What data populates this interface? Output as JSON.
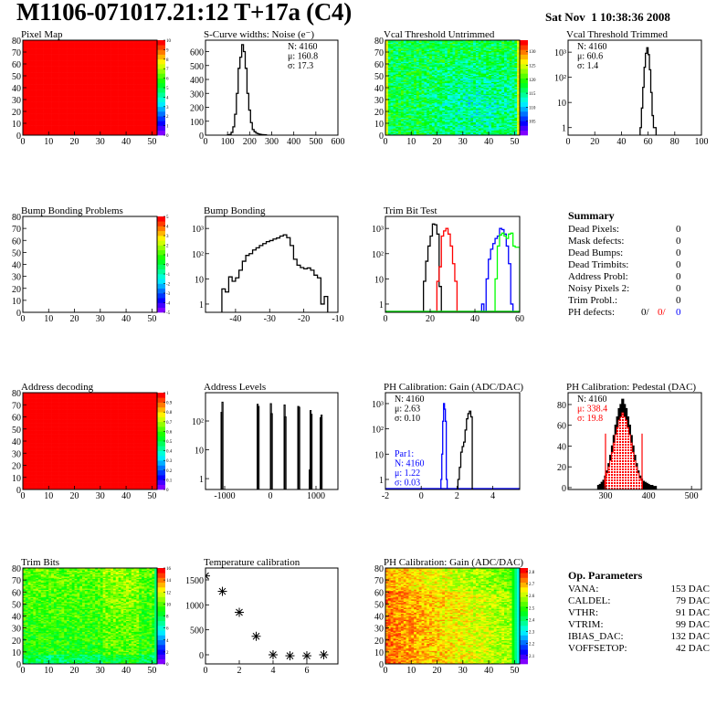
{
  "header": {
    "title": "M1106-071017.21:12 T+17a (C4)",
    "date": "Sat Nov  1 10:38:36 2008"
  },
  "colors": {
    "frame": "#000000",
    "black": "#000000",
    "red": "#ff0000",
    "blue": "#0000ff",
    "green": "#00ff00"
  },
  "pads": [
    {
      "id": "pixel-map",
      "title": "Pixel Map",
      "kind": "map",
      "xlim": [
        0,
        52
      ],
      "ylim": [
        0,
        80
      ],
      "xticks": [
        0,
        10,
        20,
        30,
        40,
        50
      ],
      "yticks": [
        0,
        10,
        20,
        30,
        40,
        50,
        60,
        70,
        80
      ],
      "zlim": [
        0,
        10
      ],
      "zticks": [
        0,
        1,
        2,
        3,
        4,
        5,
        6,
        7,
        8,
        9,
        10
      ],
      "fill": "uniform"
    },
    {
      "id": "s-curve-widths",
      "title": "S-Curve widths: Noise (e⁻)",
      "kind": "hist",
      "log": false,
      "xlim": [
        0,
        600
      ],
      "ylim": [
        0,
        682
      ],
      "xticks": [
        0,
        100,
        200,
        300,
        400,
        500,
        600
      ],
      "yticks": [
        0,
        100,
        200,
        300,
        400,
        500,
        600
      ],
      "stats_pos": "right",
      "stats": [
        {
          "text": "N: 4160",
          "color": "#000000"
        },
        {
          "text": "μ: 160.8",
          "color": "#000000"
        },
        {
          "text": "σ: 17.3",
          "color": "#000000"
        }
      ],
      "series": [
        {
          "color": "#000000",
          "start": 100,
          "width": 8,
          "values": [
            2,
            5,
            20,
            60,
            150,
            300,
            480,
            560,
            650,
            600,
            480,
            300,
            180,
            90,
            40,
            25,
            15,
            10,
            6,
            4,
            3,
            2
          ]
        }
      ]
    },
    {
      "id": "vcal-threshold-untrimmed",
      "title": "Vcal Threshold Untrimmed",
      "kind": "map",
      "xlim": [
        0,
        52
      ],
      "ylim": [
        0,
        80
      ],
      "xticks": [
        0,
        10,
        20,
        30,
        40,
        50
      ],
      "yticks": [
        0,
        10,
        20,
        30,
        40,
        50,
        60,
        70,
        80
      ],
      "zlim": [
        100,
        134
      ],
      "zticks": [
        105,
        110,
        115,
        120,
        125,
        130
      ],
      "fill": "vcal"
    },
    {
      "id": "vcal-threshold-trimmed",
      "title": "Vcal Threshold Trimmed",
      "kind": "hist",
      "log": true,
      "xlim": [
        0,
        100
      ],
      "ylim": [
        0.5,
        3000
      ],
      "xticks": [
        0,
        20,
        40,
        60,
        80,
        100
      ],
      "yticks": [
        {
          "v": 1,
          "label": "1"
        },
        {
          "v": 10,
          "label": "10"
        },
        {
          "v": 100,
          "label": "10²"
        },
        {
          "v": 1000,
          "label": "10³"
        }
      ],
      "stats_pos": "left",
      "stats": [
        {
          "text": "N: 4160",
          "color": "#000000"
        },
        {
          "text": "μ: 60.6",
          "color": "#000000"
        },
        {
          "text": "σ:  1.4",
          "color": "#000000"
        }
      ],
      "series": [
        {
          "color": "#000000",
          "start": 54,
          "width": 1,
          "values": [
            1,
            6,
            40,
            250,
            900,
            1500,
            800,
            200,
            25,
            3,
            1,
            1
          ]
        }
      ]
    },
    {
      "id": "bump-bonding-problems",
      "title": "Bump Bonding Problems",
      "kind": "map",
      "xlim": [
        0,
        52
      ],
      "ylim": [
        0,
        80
      ],
      "xticks": [
        0,
        10,
        20,
        30,
        40,
        50
      ],
      "yticks": [
        0,
        10,
        20,
        30,
        40,
        50,
        60,
        70,
        80
      ],
      "zlim": [
        -5,
        5
      ],
      "zticks": [
        -5,
        -4,
        -3,
        -2,
        -1,
        0,
        1,
        2,
        3,
        4,
        5
      ],
      "fill": "empty"
    },
    {
      "id": "bump-bonding",
      "title": "Bump Bonding",
      "kind": "hist",
      "log": true,
      "xlim": [
        -48.8,
        -10
      ],
      "ylim": [
        0.47,
        3000
      ],
      "xticks": [
        -40,
        -30,
        -20,
        -10
      ],
      "yticks": [
        {
          "v": 1,
          "label": "1"
        },
        {
          "v": 10,
          "label": "10"
        },
        {
          "v": 100,
          "label": "10²"
        },
        {
          "v": 1000,
          "label": "10³"
        }
      ],
      "series": [
        {
          "color": "#000000",
          "start": -44,
          "width": 1,
          "values": [
            4,
            3,
            12,
            8,
            11,
            22,
            50,
            85,
            100,
            140,
            170,
            210,
            250,
            300,
            330,
            380,
            420,
            500,
            560,
            430,
            210,
            60,
            35,
            28,
            25,
            27,
            22,
            14,
            11,
            1,
            2
          ]
        }
      ]
    },
    {
      "id": "trim-bit-test",
      "title": "Trim Bit Test",
      "kind": "hist",
      "log": true,
      "xlim": [
        0,
        60
      ],
      "ylim": [
        0.47,
        3000
      ],
      "xticks": [
        0,
        20,
        40,
        60
      ],
      "yticks": [
        {
          "v": 1,
          "label": "1"
        },
        {
          "v": 10,
          "label": "10"
        },
        {
          "v": 100,
          "label": "10²"
        },
        {
          "v": 1000,
          "label": "10³"
        }
      ],
      "series": [
        {
          "color": "#000000",
          "start": 17,
          "width": 1,
          "values": [
            8,
            50,
            200,
            500,
            1500,
            1400,
            600,
            5
          ]
        },
        {
          "color": "#ff0000",
          "start": 23,
          "width": 1,
          "values": [
            8,
            30,
            500,
            800,
            1000,
            600,
            200,
            40,
            8
          ]
        },
        {
          "color": "#0000ff",
          "start": 43,
          "width": 1,
          "values": [
            1,
            0,
            10,
            60,
            150,
            250,
            400,
            500,
            1000,
            900,
            600,
            200,
            40,
            1
          ]
        },
        {
          "color": "#00ff00",
          "start": 49,
          "width": 1,
          "values": [
            10,
            200,
            550,
            650,
            500,
            400,
            600,
            650,
            200,
            180,
            180
          ]
        }
      ]
    },
    {
      "id": "summary",
      "kind": "text"
    },
    {
      "id": "address-decoding",
      "title": "Address decoding",
      "kind": "map",
      "xlim": [
        0,
        52
      ],
      "ylim": [
        0,
        80
      ],
      "xticks": [
        0,
        10,
        20,
        30,
        40,
        50
      ],
      "yticks": [
        0,
        10,
        20,
        30,
        40,
        50,
        60,
        70,
        80
      ],
      "zlim": [
        0,
        1
      ],
      "zticks": [
        0,
        0.1,
        0.2,
        0.3,
        0.4,
        0.5,
        0.6,
        0.7,
        0.8,
        0.9,
        1
      ],
      "fill": "uniform"
    },
    {
      "id": "address-levels",
      "title": "Address Levels",
      "kind": "spikes",
      "log": true,
      "xlim": [
        -1420,
        1480
      ],
      "ylim": [
        0.42,
        960
      ],
      "xticks": [
        -1000,
        0,
        1000
      ],
      "yticks": [
        {
          "v": 1,
          "label": "1"
        },
        {
          "v": 10,
          "label": "10"
        },
        {
          "v": 100,
          "label": "10²"
        }
      ],
      "series": [
        {
          "color": "#000000",
          "width": 20,
          "bins": [
            [
              -1080,
              200
            ],
            [
              -1060,
              450
            ],
            [
              -290,
              380
            ],
            [
              -270,
              320
            ],
            [
              0,
              400
            ],
            [
              20,
              180
            ],
            [
              300,
              360
            ],
            [
              320,
              140
            ],
            [
              600,
              320
            ],
            [
              620,
              300
            ],
            [
              850,
              2
            ],
            [
              870,
              230
            ],
            [
              890,
              170
            ],
            [
              1090,
              130
            ],
            [
              1110,
              160
            ]
          ]
        }
      ]
    },
    {
      "id": "ph-calibration-gain",
      "title": "PH Calibration: Gain (ADC/DAC)",
      "kind": "hist",
      "log": true,
      "xlim": [
        -2,
        5.5
      ],
      "ylim": [
        0.4,
        2700
      ],
      "xticks": [
        -2,
        0,
        2,
        4
      ],
      "yticks": [
        {
          "v": 1,
          "label": "1"
        },
        {
          "v": 10,
          "label": "10"
        },
        {
          "v": 100,
          "label": "10²"
        },
        {
          "v": 1000,
          "label": "10³"
        }
      ],
      "stats_pos": "left",
      "stats": [
        {
          "text": "N: 4160",
          "color": "#000000"
        },
        {
          "text": "μ: 2.63",
          "color": "#000000"
        },
        {
          "text": "σ: 0.10",
          "color": "#000000"
        }
      ],
      "stats2": [
        {
          "text": "Par1:",
          "color": "#0000ff"
        },
        {
          "text": "N: 4160",
          "color": "#0000ff"
        },
        {
          "text": "μ: 1.22",
          "color": "#0000ff"
        },
        {
          "text": "σ: 0.03",
          "color": "#0000ff"
        }
      ],
      "series": [
        {
          "color": "#0000ff",
          "start": 1.1,
          "width": 0.05,
          "values": [
            1,
            10,
            200,
            1000,
            600,
            200,
            1
          ]
        },
        {
          "color": "#000000",
          "start": 2.05,
          "width": 0.08,
          "values": [
            1,
            3,
            12,
            20,
            30,
            90,
            250,
            400,
            500,
            300
          ]
        }
      ]
    },
    {
      "id": "ph-calibration-pedestal",
      "title": "PH Calibration: Pedestal (DAC)",
      "kind": "hist",
      "log": false,
      "xlim": [
        213,
        523
      ],
      "ylim": [
        -1.8,
        91.4
      ],
      "xticks": [
        300,
        400,
        500
      ],
      "yticks": [
        0,
        20,
        40,
        60,
        80
      ],
      "stats_pos": "left",
      "stats": [
        {
          "text": "N: 4160",
          "color": "#000000"
        },
        {
          "text": "μ: 338.4",
          "color": "#ff0000"
        },
        {
          "text": "σ: 19.8",
          "color": "#ff0000"
        }
      ],
      "series": [
        {
          "color": "#000000",
          "fill": "#000000",
          "start": 282,
          "width": 4,
          "values": [
            2,
            3,
            5,
            7,
            11,
            16,
            23,
            31,
            40,
            50,
            60,
            68,
            76,
            80,
            85,
            80,
            76,
            68,
            60,
            50,
            40,
            31,
            23,
            16,
            11,
            8,
            6,
            5,
            4,
            3,
            2,
            2,
            1,
            1
          ]
        },
        {
          "color": "#ff0000",
          "fill": "dots",
          "start": 298,
          "width": 4,
          "values": [
            9,
            14,
            20,
            26,
            34,
            43,
            51,
            58,
            65,
            68,
            72,
            68,
            65,
            58,
            51,
            43,
            34,
            26,
            20,
            14,
            9,
            7
          ]
        }
      ],
      "fit_range": [
        300,
        385
      ],
      "fit_marker_height": 52
    },
    {
      "id": "trim-bits",
      "title": "Trim Bits",
      "kind": "map",
      "xlim": [
        0,
        52
      ],
      "ylim": [
        0,
        80
      ],
      "xticks": [
        0,
        10,
        20,
        30,
        40,
        50
      ],
      "yticks": [
        0,
        10,
        20,
        30,
        40,
        50,
        60,
        70,
        80
      ],
      "zlim": [
        0,
        16
      ],
      "zticks": [
        0,
        2,
        4,
        6,
        8,
        10,
        12,
        14,
        16
      ],
      "fill": "trim"
    },
    {
      "id": "temperature-calibration",
      "title": "Temperature calibration",
      "kind": "graph",
      "xlim": [
        0,
        7.84
      ],
      "ylim": [
        -183,
        1738
      ],
      "xticks": [
        0,
        2,
        4,
        6
      ],
      "yticks": [
        0,
        500,
        1000,
        1500
      ],
      "points": [
        [
          0,
          1580
        ],
        [
          1,
          1270
        ],
        [
          2,
          850
        ],
        [
          3,
          370
        ],
        [
          4,
          0
        ],
        [
          5,
          -20
        ],
        [
          6,
          -20
        ],
        [
          7,
          0
        ]
      ]
    },
    {
      "id": "ph-calibration-gain-map",
      "title": "PH Calibration: Gain (ADC/DAC)",
      "kind": "map",
      "xlim": [
        0,
        52
      ],
      "ylim": [
        0,
        80
      ],
      "xticks": [
        0,
        10,
        20,
        30,
        40,
        50
      ],
      "yticks": [
        0,
        10,
        20,
        30,
        40,
        50,
        60,
        70,
        80
      ],
      "zlim": [
        2.03,
        2.83
      ],
      "zticks": [
        2.1,
        2.2,
        2.3,
        2.4,
        2.5,
        2.6,
        2.7,
        2.8
      ],
      "fill": "gain"
    },
    {
      "id": "op-parameters",
      "kind": "text"
    }
  ],
  "summary": {
    "title": "Summary",
    "rows": [
      {
        "label": "Dead Pixels:",
        "value": "0"
      },
      {
        "label": "Mask defects:",
        "value": "0"
      },
      {
        "label": "Dead Bumps:",
        "value": "0"
      },
      {
        "label": "Dead Trimbits:",
        "value": "0"
      },
      {
        "label": "Address Probl:",
        "value": "0"
      },
      {
        "label": "Noisy Pixels 2:",
        "value": "0"
      },
      {
        "label": "Trim Probl.:",
        "value": "0"
      }
    ],
    "ph_defects": {
      "label": "PH defects:",
      "v1": "0/",
      "v2": "0/",
      "v3": "0"
    }
  },
  "op_parameters": {
    "title": "Op. Parameters",
    "rows": [
      {
        "label": "VANA:",
        "value": "153 DAC"
      },
      {
        "label": "CALDEL:",
        "value": "79 DAC"
      },
      {
        "label": "VTHR:",
        "value": "91 DAC"
      },
      {
        "label": "VTRIM:",
        "value": "99 DAC"
      },
      {
        "label": "IBIAS_DAC:",
        "value": "132 DAC"
      },
      {
        "label": "VOFFSETOP:",
        "value": "42 DAC"
      }
    ]
  }
}
